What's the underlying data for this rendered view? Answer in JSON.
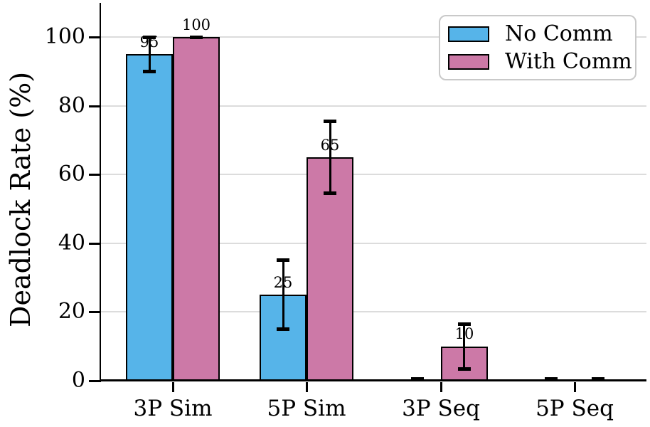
{
  "chart_data": {
    "type": "bar",
    "title": "",
    "xlabel": "",
    "ylabel": "Deadlock Rate (%)",
    "categories": [
      "3P Sim",
      "5P Sim",
      "3P Seq",
      "5P Seq"
    ],
    "series": [
      {
        "name": "No Comm",
        "color": "#56B4E9",
        "values": [
          95,
          25,
          0,
          0
        ],
        "errors": [
          5,
          10,
          0,
          0
        ],
        "bar_labels": [
          "95",
          "25",
          "",
          ""
        ]
      },
      {
        "name": "With Comm",
        "color": "#CC79A7",
        "values": [
          100,
          65,
          10,
          0
        ],
        "errors": [
          0,
          10.5,
          6.5,
          0
        ],
        "bar_labels": [
          "100",
          "65",
          "10",
          ""
        ]
      }
    ],
    "yticks": [
      0,
      20,
      40,
      60,
      80,
      100
    ],
    "ylim": [
      0,
      110
    ],
    "grid": "horizontal",
    "grid_color": "#dcdcdc",
    "bar_edge_color": "#000000",
    "error_bar_color": "#000000",
    "legend_position": "upper right"
  }
}
